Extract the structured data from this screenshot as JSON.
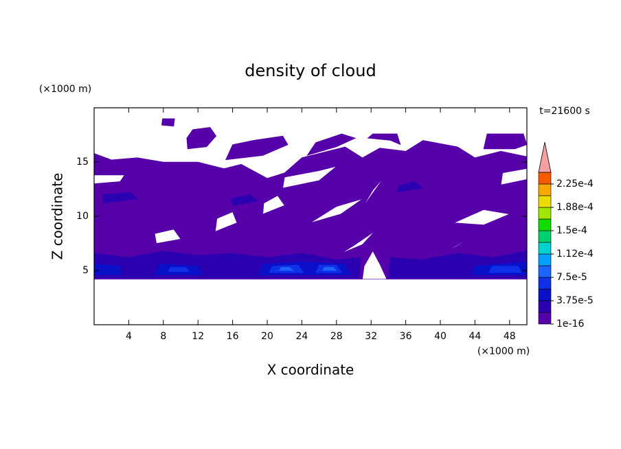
{
  "chart_data": {
    "type": "contour",
    "title": "density of cloud",
    "x_label": "X coordinate",
    "y_label": "Z coordinate",
    "x_unit": "(×1000 m)",
    "y_unit": "(×1000 m)",
    "time_label": "t=21600 s",
    "xlim": [
      0,
      50
    ],
    "xticks": [
      4,
      8,
      12,
      16,
      20,
      24,
      28,
      32,
      36,
      40,
      44,
      48
    ],
    "ylim": [
      0,
      20
    ],
    "yticks": [
      5,
      10,
      15
    ],
    "clim": [
      1e-16,
      0.00024375
    ],
    "colorbar_ticks": [
      {
        "value": 1e-16,
        "label": "1e-16"
      },
      {
        "value": 3.75e-05,
        "label": "3.75e-5"
      },
      {
        "value": 7.5e-05,
        "label": "7.5e-5"
      },
      {
        "value": 0.0001125,
        "label": "1.12e-4"
      },
      {
        "value": 0.00015,
        "label": "1.5e-4"
      },
      {
        "value": 0.0001875,
        "label": "1.88e-4"
      },
      {
        "value": 0.000225,
        "label": "2.25e-4"
      }
    ],
    "colors": [
      "#5500a8",
      "#2a00b0",
      "#0a10c8",
      "#1030e8",
      "#1e64ff",
      "#00a0ff",
      "#00d2d0",
      "#00d070",
      "#10dc00",
      "#a0e600",
      "#ecdc00",
      "#f8a800",
      "#f85a00"
    ],
    "extend_color": "#f4a0a0",
    "regions": [
      {
        "level": 0,
        "polygons": [
          [
            [
              0,
              4.2
            ],
            [
              50,
              4.2
            ],
            [
              50,
              15.5
            ],
            [
              47,
              16
            ],
            [
              44,
              15.4
            ],
            [
              42,
              16.4
            ],
            [
              38,
              17
            ],
            [
              36,
              16
            ],
            [
              33,
              16.3
            ],
            [
              31,
              15.4
            ],
            [
              29,
              16.4
            ],
            [
              27,
              16
            ],
            [
              24,
              15.4
            ],
            [
              22,
              14
            ],
            [
              20,
              13.5
            ],
            [
              17,
              14.8
            ],
            [
              15,
              14.4
            ],
            [
              12,
              15
            ],
            [
              8,
              15
            ],
            [
              5,
              15.4
            ],
            [
              2,
              15.2
            ],
            [
              0,
              15.8
            ]
          ],
          [
            [
              0,
              13
            ],
            [
              3,
              13.2
            ],
            [
              3.5,
              13.8
            ],
            [
              0,
              13.8
            ]
          ],
          [
            [
              14,
              8.6
            ],
            [
              16.5,
              9.4
            ],
            [
              16,
              10.4
            ],
            [
              14.2,
              9.8
            ]
          ],
          [
            [
              7.2,
              7.5
            ],
            [
              10,
              7.9
            ],
            [
              9.2,
              8.8
            ],
            [
              7,
              8.4
            ]
          ],
          [
            [
              19.5,
              10.2
            ],
            [
              22,
              11
            ],
            [
              21.2,
              11.9
            ],
            [
              19.6,
              11.2
            ]
          ],
          [
            [
              21.8,
              12.6
            ],
            [
              26,
              13.3
            ],
            [
              28,
              14.6
            ],
            [
              26,
              14.2
            ],
            [
              22,
              13.6
            ]
          ],
          [
            [
              25,
              9.4
            ],
            [
              28.5,
              10.2
            ],
            [
              31,
              11.6
            ],
            [
              28,
              10.9
            ]
          ],
          [
            [
              28.6,
              6.6
            ],
            [
              31,
              7.4
            ],
            [
              32.4,
              8.6
            ],
            [
              30,
              7.3
            ]
          ],
          [
            [
              31,
              10.8
            ],
            [
              33.5,
              13.6
            ],
            [
              35,
              15
            ],
            [
              32.2,
              12.4
            ]
          ],
          [
            [
              38,
              5.6
            ],
            [
              41,
              6.9
            ],
            [
              44,
              8.3
            ],
            [
              41.8,
              7.2
            ]
          ],
          [
            [
              41.6,
              9.4
            ],
            [
              45,
              9.2
            ],
            [
              48,
              10.2
            ],
            [
              45,
              10.6
            ]
          ],
          [
            [
              47,
              12.9
            ],
            [
              50,
              13.4
            ],
            [
              50,
              14.4
            ],
            [
              47.2,
              14
            ]
          ],
          [
            [
              31,
              4.2
            ],
            [
              33.8,
              4.2
            ],
            [
              33,
              5.6
            ],
            [
              32.2,
              6.8
            ],
            [
              31.2,
              5.4
            ]
          ]
        ]
      },
      {
        "level": 0,
        "polygons": [
          [
            [
              7.8,
              18.4
            ],
            [
              9.2,
              18.3
            ],
            [
              9.3,
              19
            ],
            [
              7.9,
              19
            ]
          ]
        ]
      },
      {
        "level": 0,
        "polygons": [
          [
            [
              10.8,
              16.2
            ],
            [
              13,
              16.4
            ],
            [
              14.1,
              17.4
            ],
            [
              13.4,
              18.2
            ],
            [
              11.4,
              18
            ],
            [
              10.7,
              17.2
            ]
          ]
        ]
      },
      {
        "level": 0,
        "polygons": [
          [
            [
              15.2,
              15.2
            ],
            [
              19.5,
              15.6
            ],
            [
              22.4,
              16.6
            ],
            [
              21.8,
              17.4
            ],
            [
              18.4,
              17
            ],
            [
              16,
              16.6
            ]
          ]
        ]
      },
      {
        "level": 0,
        "polygons": [
          [
            [
              24.6,
              15.6
            ],
            [
              28,
              16.4
            ],
            [
              30.2,
              17.2
            ],
            [
              28.6,
              17.6
            ],
            [
              25.6,
              16.8
            ]
          ]
        ]
      },
      {
        "level": 0,
        "polygons": [
          [
            [
              31.6,
              17.2
            ],
            [
              34.2,
              17
            ],
            [
              35.4,
              16.6
            ],
            [
              35,
              17.6
            ],
            [
              32.2,
              17.6
            ]
          ]
        ]
      },
      {
        "level": 0,
        "polygons": [
          [
            [
              45,
              16.2
            ],
            [
              48.6,
              16.2
            ],
            [
              50,
              16.6
            ],
            [
              49.6,
              17.6
            ],
            [
              45.4,
              17.6
            ]
          ]
        ]
      },
      {
        "level": 1,
        "polygons": [
          [
            [
              0,
              4.3
            ],
            [
              30.6,
              4.3
            ],
            [
              30.8,
              6.2
            ],
            [
              28,
              6
            ],
            [
              24,
              6.6
            ],
            [
              20,
              6.2
            ],
            [
              16,
              6.6
            ],
            [
              12,
              6.4
            ],
            [
              8,
              6.8
            ],
            [
              4,
              6.2
            ],
            [
              0,
              6.6
            ]
          ],
          [
            [
              34,
              4.3
            ],
            [
              50,
              4.3
            ],
            [
              50,
              6.8
            ],
            [
              46,
              6.2
            ],
            [
              42,
              6.6
            ],
            [
              38,
              6
            ],
            [
              34.2,
              6.2
            ]
          ],
          [
            [
              1,
              11.2
            ],
            [
              5,
              11.6
            ],
            [
              4.2,
              12.2
            ],
            [
              1,
              12
            ]
          ],
          [
            [
              16,
              11
            ],
            [
              19,
              11.4
            ],
            [
              18,
              12
            ],
            [
              15.8,
              11.6
            ]
          ],
          [
            [
              35,
              12.2
            ],
            [
              38,
              12.6
            ],
            [
              37,
              13.2
            ],
            [
              35.2,
              12.8
            ]
          ]
        ]
      },
      {
        "level": 2,
        "polygons": [
          [
            [
              0,
              4.6
            ],
            [
              3.2,
              4.6
            ],
            [
              3,
              5.4
            ],
            [
              0,
              5.6
            ]
          ],
          [
            [
              7,
              4.6
            ],
            [
              12.5,
              4.6
            ],
            [
              12,
              5.4
            ],
            [
              7.6,
              5.6
            ]
          ],
          [
            [
              19,
              4.6
            ],
            [
              29.6,
              4.6
            ],
            [
              29,
              5.6
            ],
            [
              24,
              5.8
            ],
            [
              19.6,
              5.6
            ]
          ],
          [
            [
              43.6,
              4.6
            ],
            [
              50,
              4.6
            ],
            [
              50,
              5.8
            ],
            [
              44,
              5.4
            ]
          ]
        ]
      },
      {
        "level": 3,
        "polygons": [
          [
            [
              8.6,
              4.9
            ],
            [
              11,
              4.9
            ],
            [
              10.6,
              5.3
            ],
            [
              8.8,
              5.3
            ]
          ],
          [
            [
              20.2,
              4.8
            ],
            [
              24.2,
              4.8
            ],
            [
              23.6,
              5.5
            ],
            [
              20.6,
              5.4
            ]
          ],
          [
            [
              25.6,
              4.8
            ],
            [
              28.6,
              4.8
            ],
            [
              28,
              5.5
            ],
            [
              26,
              5.5
            ]
          ],
          [
            [
              45.6,
              4.8
            ],
            [
              49.4,
              4.8
            ],
            [
              49,
              5.4
            ],
            [
              46,
              5.4
            ]
          ]
        ]
      },
      {
        "level": 4,
        "polygons": [
          [
            [
              21.4,
              5
            ],
            [
              23,
              5
            ],
            [
              22.6,
              5.3
            ],
            [
              21.6,
              5.3
            ]
          ],
          [
            [
              26.4,
              5
            ],
            [
              28,
              5
            ],
            [
              27.6,
              5.3
            ],
            [
              26.6,
              5.3
            ]
          ]
        ]
      }
    ]
  }
}
